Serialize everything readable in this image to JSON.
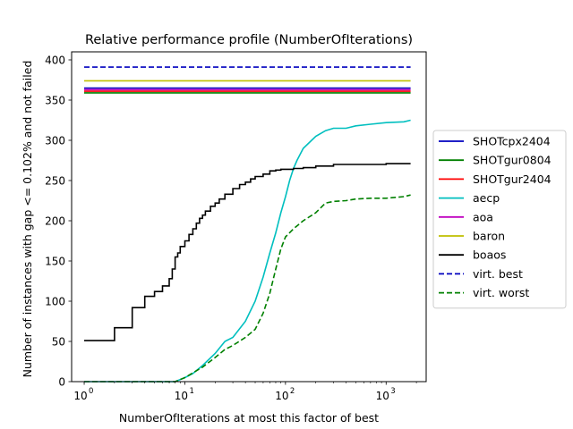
{
  "chart_data": {
    "type": "line",
    "title": "Relative performance profile (NumberOfIterations)",
    "xlabel": "NumberOfIterations at most this factor of best",
    "ylabel": "Number of instances with gap <= 0.102% and not failed",
    "xscale": "log",
    "xlim": [
      0.75,
      2500
    ],
    "ylim": [
      0,
      410
    ],
    "grid": false,
    "legend_position": "right",
    "x_ticks": [
      {
        "value": 1,
        "base": "10",
        "exp": "0"
      },
      {
        "value": 10,
        "base": "10",
        "exp": "1"
      },
      {
        "value": 100,
        "base": "10",
        "exp": "2"
      },
      {
        "value": 1000,
        "base": "10",
        "exp": "3"
      }
    ],
    "y_ticks": [
      0,
      50,
      100,
      150,
      200,
      250,
      300,
      350,
      400
    ],
    "series": [
      {
        "name": "SHOTcpx2404",
        "color": "#0000bf",
        "dash": "solid",
        "x": [
          1,
          1750
        ],
        "y": [
          365,
          365
        ]
      },
      {
        "name": "SHOTgur0804",
        "color": "#008000",
        "dash": "solid",
        "x": [
          1,
          1750
        ],
        "y": [
          359,
          359
        ]
      },
      {
        "name": "SHOTgur2404",
        "color": "#ff0000",
        "dash": "solid",
        "x": [
          1,
          1750
        ],
        "y": [
          361,
          361
        ]
      },
      {
        "name": "aecp",
        "color": "#00bfbf",
        "dash": "solid",
        "x": [
          1,
          8,
          10,
          12,
          15,
          20,
          25,
          30,
          40,
          50,
          60,
          70,
          80,
          90,
          100,
          110,
          120,
          130,
          150,
          200,
          250,
          300,
          400,
          500,
          700,
          1000,
          1500,
          1750
        ],
        "y": [
          0,
          0,
          5,
          10,
          20,
          35,
          50,
          55,
          75,
          100,
          130,
          160,
          185,
          210,
          230,
          250,
          265,
          275,
          290,
          305,
          312,
          315,
          315,
          318,
          320,
          322,
          323,
          325
        ]
      },
      {
        "name": "aoa",
        "color": "#bf00bf",
        "dash": "solid",
        "x": [
          1,
          1750
        ],
        "y": [
          363,
          363
        ]
      },
      {
        "name": "baron",
        "color": "#bfbf00",
        "dash": "solid",
        "x": [
          1,
          1750
        ],
        "y": [
          374,
          374
        ]
      },
      {
        "name": "boaos",
        "color": "#000000",
        "dash": "solid",
        "step": true,
        "x": [
          1,
          2,
          3,
          4,
          5,
          6,
          7,
          7.5,
          8,
          8.5,
          9,
          10,
          11,
          12,
          13,
          14,
          15,
          16,
          18,
          20,
          22,
          25,
          30,
          35,
          40,
          45,
          50,
          60,
          70,
          80,
          90,
          100,
          120,
          150,
          200,
          300,
          1000,
          1750
        ],
        "y": [
          51,
          67,
          92,
          106,
          112,
          119,
          128,
          140,
          155,
          160,
          168,
          175,
          183,
          190,
          197,
          203,
          207,
          212,
          218,
          222,
          227,
          233,
          240,
          245,
          248,
          252,
          255,
          258,
          262,
          263,
          264,
          264,
          265,
          266,
          268,
          270,
          271,
          271
        ]
      },
      {
        "name": "virt. best",
        "color": "#0000bf",
        "dash": "dashed",
        "x": [
          1,
          1750
        ],
        "y": [
          391,
          391
        ]
      },
      {
        "name": "virt. worst",
        "color": "#008000",
        "dash": "dashed",
        "x": [
          1,
          8,
          10,
          15,
          20,
          25,
          30,
          40,
          50,
          60,
          70,
          80,
          90,
          100,
          120,
          150,
          200,
          250,
          300,
          400,
          500,
          700,
          1000,
          1500,
          1750
        ],
        "y": [
          0,
          0,
          5,
          18,
          30,
          40,
          45,
          55,
          65,
          85,
          110,
          140,
          165,
          180,
          190,
          200,
          210,
          222,
          224,
          225,
          227,
          228,
          228,
          230,
          232
        ]
      }
    ]
  }
}
